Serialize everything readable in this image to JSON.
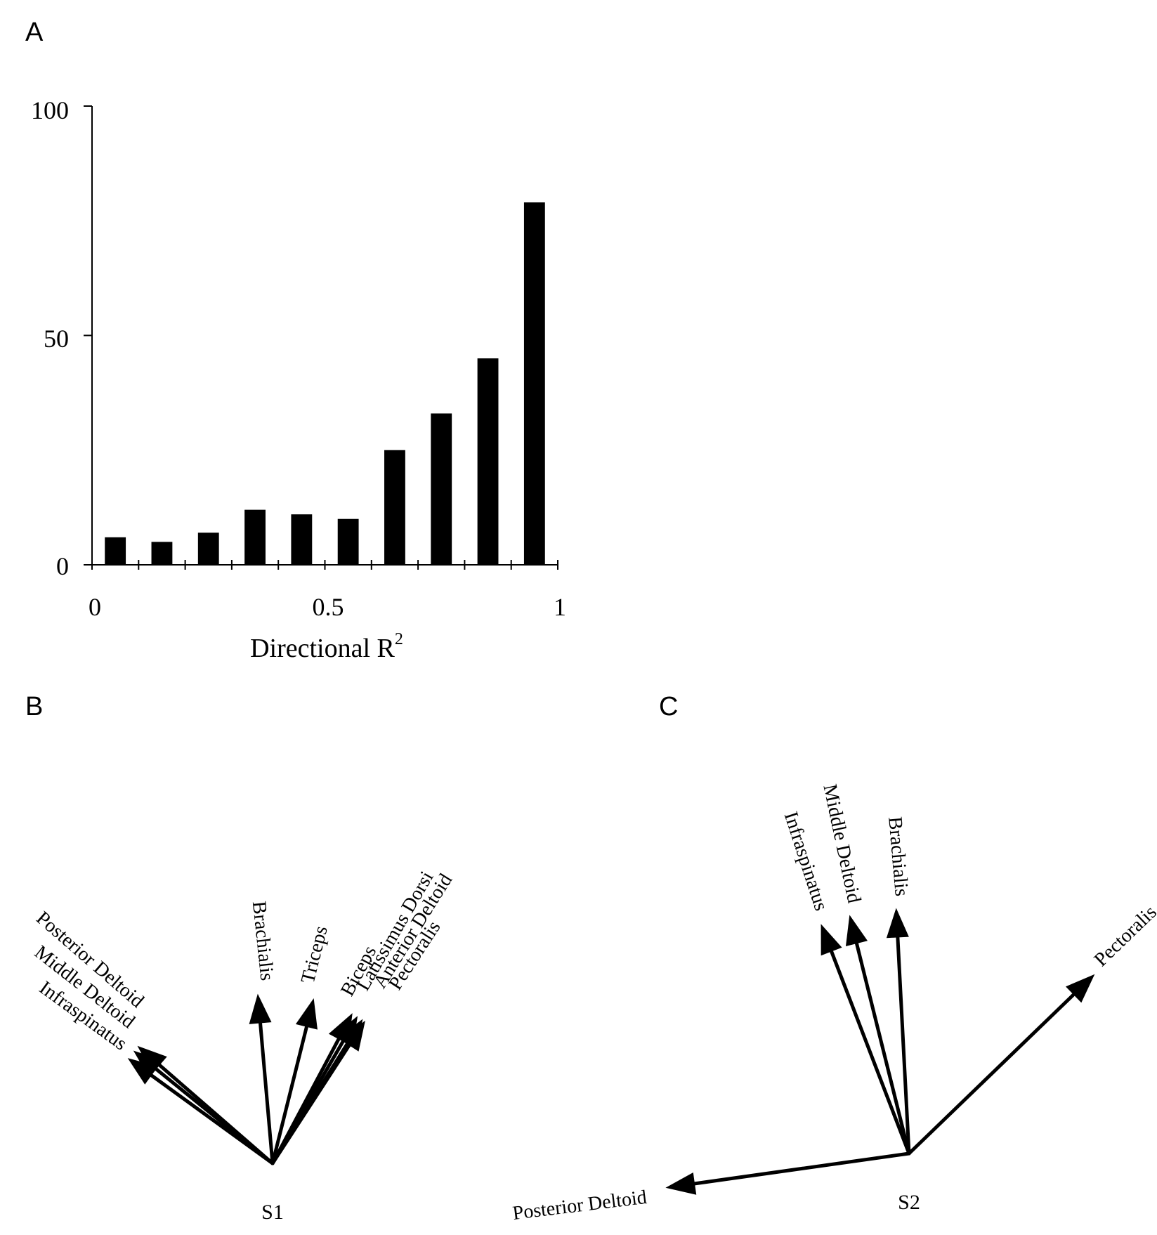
{
  "chart_data": [
    {
      "panel": "A",
      "type": "bar",
      "x": [
        0.05,
        0.15,
        0.25,
        0.35,
        0.45,
        0.55,
        0.65,
        0.75,
        0.85,
        0.95
      ],
      "values": [
        6,
        5,
        7,
        12,
        11,
        10,
        25,
        33,
        45,
        79
      ],
      "xlim": [
        0,
        1
      ],
      "ylim": [
        0,
        100
      ],
      "xticks": [
        "0",
        "0.5",
        "1"
      ],
      "yticks": [
        "0",
        "50",
        "100"
      ],
      "xlabel": "Directional R",
      "xlabel_superscript": "2",
      "ylabel": "",
      "title": "",
      "grid": false
    },
    {
      "panel": "B",
      "type": "vector",
      "origin_label": "S1",
      "vectors": [
        {
          "label": "Infraspinatus",
          "angle_deg": 144,
          "length": 1.0
        },
        {
          "label": "Middle Deltoid",
          "angle_deg": 141,
          "length": 1.0
        },
        {
          "label": "Posterior Deltoid",
          "angle_deg": 139,
          "length": 1.0
        },
        {
          "label": "Brachialis",
          "angle_deg": 95,
          "length": 0.95
        },
        {
          "label": "Triceps",
          "angle_deg": 76,
          "length": 0.95
        },
        {
          "label": "Biceps",
          "angle_deg": 62,
          "length": 0.95
        },
        {
          "label": "Latissimus Dorsi",
          "angle_deg": 60,
          "length": 0.95
        },
        {
          "label": "Anterior Deltoid",
          "angle_deg": 58,
          "length": 0.95
        },
        {
          "label": "Pectoralis",
          "angle_deg": 57,
          "length": 0.95
        }
      ]
    },
    {
      "panel": "C",
      "type": "vector",
      "origin_label": "S2",
      "vectors": [
        {
          "label": "Infraspinatus",
          "angle_deg": 111,
          "length": 1.0
        },
        {
          "label": "Middle Deltoid",
          "angle_deg": 104,
          "length": 1.0
        },
        {
          "label": "Brachialis",
          "angle_deg": 93,
          "length": 1.0
        },
        {
          "label": "Pectoralis",
          "angle_deg": 44,
          "length": 1.05
        },
        {
          "label": "Posterior Deltoid",
          "angle_deg": 188,
          "length": 1.0
        }
      ]
    }
  ],
  "panel_labels": [
    "A",
    "B",
    "C"
  ],
  "colors": {
    "bar": "#000000",
    "axis": "#000000",
    "arrow": "#000000"
  }
}
